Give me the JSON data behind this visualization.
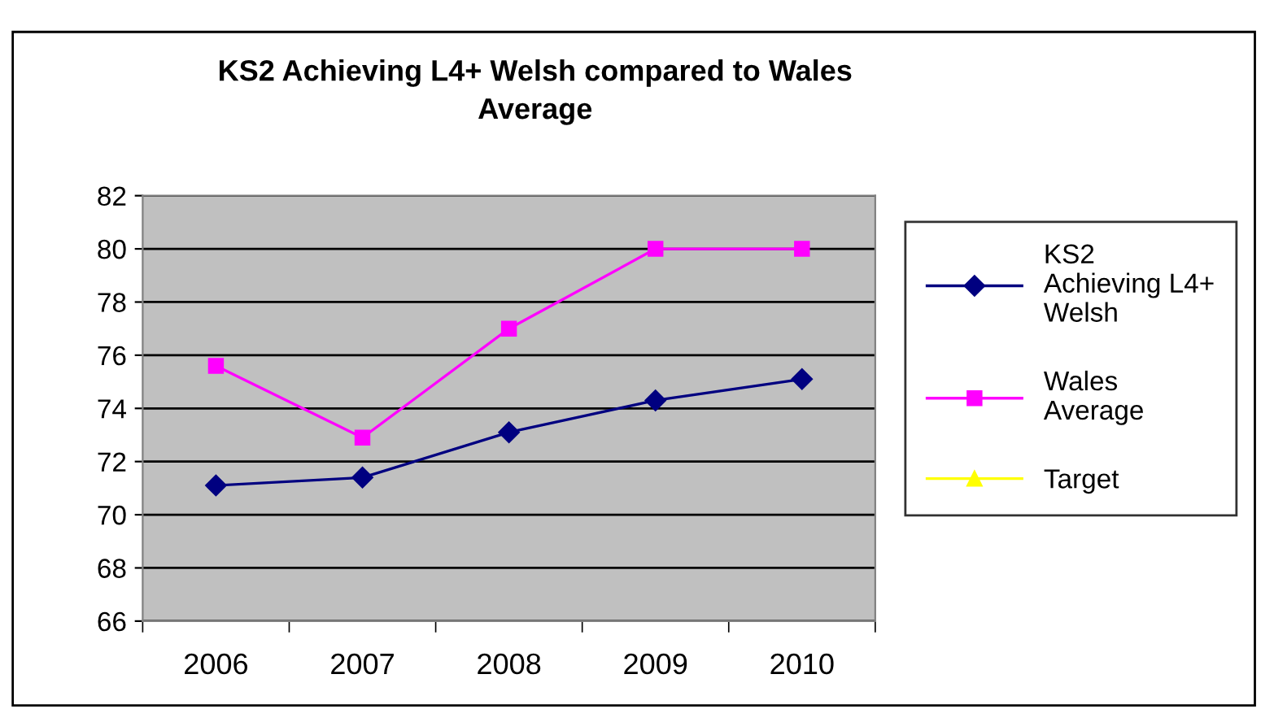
{
  "chart_data": {
    "type": "line",
    "title": "KS2 Achieving L4+ Welsh compared to Wales\nAverage",
    "categories": [
      "2006",
      "2007",
      "2008",
      "2009",
      "2010"
    ],
    "series": [
      {
        "name": "KS2\nAchieving L4+\nWelsh",
        "color": "#000080",
        "marker": "diamond",
        "values": [
          71.1,
          71.4,
          73.1,
          74.3,
          75.1
        ]
      },
      {
        "name": "Wales\nAverage",
        "color": "#ff00ff",
        "marker": "square",
        "values": [
          75.6,
          72.9,
          77.0,
          80.0,
          80.0
        ]
      },
      {
        "name": "Target",
        "color": "#ffff00",
        "marker": "triangle",
        "values": [
          null,
          null,
          null,
          null,
          null
        ]
      }
    ],
    "ylim": [
      66,
      82
    ],
    "yticks": [
      66,
      68,
      70,
      72,
      74,
      76,
      78,
      80,
      82
    ],
    "grid": "y",
    "legend": "right"
  }
}
